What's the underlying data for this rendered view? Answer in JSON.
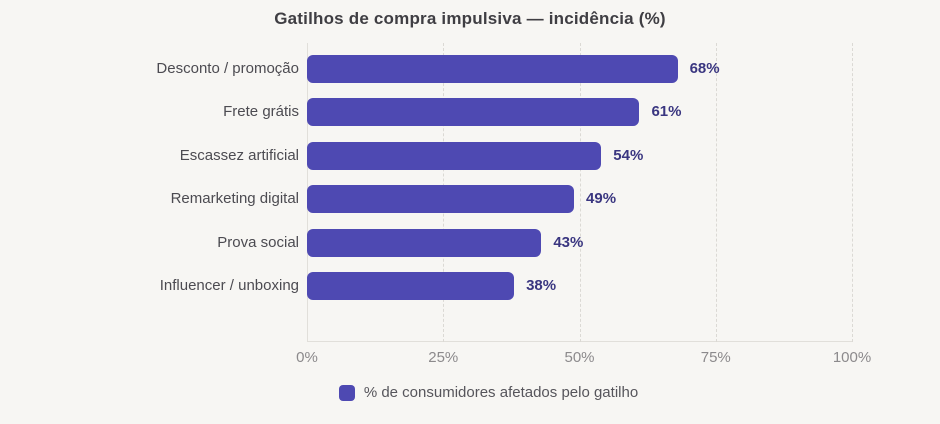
{
  "page": {
    "background": "#f7f6f3"
  },
  "chart_data": {
    "type": "bar",
    "orientation": "horizontal",
    "title": "Gatilhos de compra impulsiva — incidência (%)",
    "categories": [
      "Desconto / promoção",
      "Frete grátis",
      "Escassez artificial",
      "Remarketing digital",
      "Prova social",
      "Influencer / unboxing"
    ],
    "values": [
      68,
      61,
      54,
      49,
      43,
      38
    ],
    "value_labels": [
      "68%",
      "61%",
      "54%",
      "49%",
      "43%",
      "38%"
    ],
    "xlabel": "",
    "ylabel": "",
    "xlim": [
      0,
      100
    ],
    "x_tick_values": [
      0,
      25,
      50,
      75,
      100
    ],
    "x_tick_labels": [
      "0%",
      "25%",
      "50%",
      "75%",
      "100%"
    ],
    "grid": "vertical dashed lines at 25%, 50%, 75%, 100%",
    "legend": {
      "position": "bottom-center",
      "label": "% de consumidores afetados pelo gatilho"
    },
    "colors": {
      "bar": "#4e49b2",
      "value_label": "#3a3680",
      "category_label": "#4c4b51",
      "tick_label": "#8c8a8c",
      "title": "#3f3e43",
      "legend_text": "#56555b",
      "axis_line": "#e1dfda",
      "grid_line": "#dbd9d4"
    }
  }
}
